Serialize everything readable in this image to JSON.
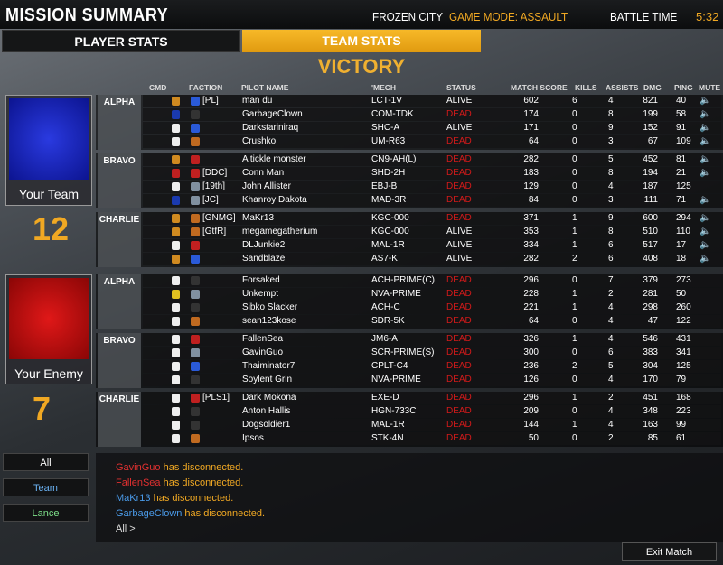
{
  "header": {
    "title": "MISSION SUMMARY",
    "map": "FROZEN CITY",
    "mode": "GAME MODE: ASSAULT",
    "battle_time_label": "BATTLE TIME",
    "battle_time": "5:32"
  },
  "tabs": [
    {
      "label": "PLAYER STATS",
      "active": false
    },
    {
      "label": "TEAM STATS",
      "active": true
    }
  ],
  "result": "VICTORY",
  "columns": [
    "CMD",
    "FACTION",
    "PILOT NAME",
    "'MECH",
    "STATUS",
    "MATCH SCORE",
    "KILLS",
    "ASSISTS",
    "DMG",
    "PING",
    "MUTE"
  ],
  "colors": {
    "accent": "#f0a823",
    "dead": "#d21a1a",
    "team": "#1a2ab8",
    "enemy": "#c01010"
  },
  "teams": [
    {
      "name": "Your Team",
      "score": "12",
      "lances": [
        {
          "name": "ALPHA",
          "rows": [
            [
              "commander",
              "#2a5ad8",
              "[PL]",
              "man du",
              "LCT-1V",
              "ALIVE",
              "602",
              "6",
              "4",
              "821",
              "40",
              true
            ],
            [
              "blue",
              "#333",
              "",
              "GarbageClown",
              "COM-TDK",
              "DEAD",
              "174",
              "0",
              "8",
              "199",
              "58",
              true
            ],
            [
              "pilot",
              "#2a5ad8",
              "",
              "Darkstariniraq",
              "SHC-A",
              "ALIVE",
              "171",
              "0",
              "9",
              "152",
              "91",
              true
            ],
            [
              "pilot",
              "#c06a20",
              "",
              "Crushko",
              "UM-R63",
              "DEAD",
              "64",
              "0",
              "3",
              "67",
              "109",
              true
            ]
          ]
        },
        {
          "name": "BRAVO",
          "rows": [
            [
              "commander",
              "#c02020",
              "",
              "A tickle monster",
              "CN9-AH(L)",
              "DEAD",
              "282",
              "0",
              "5",
              "452",
              "81",
              true
            ],
            [
              "red",
              "#c02020",
              "[DDC]",
              "Conn Man",
              "SHD-2H",
              "DEAD",
              "183",
              "0",
              "8",
              "194",
              "21",
              true
            ],
            [
              "pilot",
              "#8090a0",
              "[19th]",
              "John Allister",
              "EBJ-B",
              "DEAD",
              "129",
              "0",
              "4",
              "187",
              "125",
              false
            ],
            [
              "blue",
              "#8090a0",
              "[JC]",
              "Khanroy Dakota",
              "MAD-3R",
              "DEAD",
              "84",
              "0",
              "3",
              "111",
              "71",
              true
            ]
          ]
        },
        {
          "name": "CHARLIE",
          "rows": [
            [
              "commander",
              "#c06a20",
              "[GNMG]",
              "MaKr13",
              "KGC-000",
              "DEAD",
              "371",
              "1",
              "9",
              "600",
              "294",
              true
            ],
            [
              "commander",
              "#c06a20",
              "[GtfR]",
              "megamegatherium",
              "KGC-000",
              "ALIVE",
              "353",
              "1",
              "8",
              "510",
              "110",
              true
            ],
            [
              "pilot",
              "#c02020",
              "",
              "DLJunkie2",
              "MAL-1R",
              "ALIVE",
              "334",
              "1",
              "6",
              "517",
              "17",
              true
            ],
            [
              "commander",
              "#2a5ad8",
              "",
              "Sandblaze",
              "AS7-K",
              "ALIVE",
              "282",
              "2",
              "6",
              "408",
              "18",
              true
            ]
          ]
        }
      ]
    },
    {
      "name": "Your Enemy",
      "score": "7",
      "lances": [
        {
          "name": "ALPHA",
          "rows": [
            [
              "pilot",
              "#333",
              "",
              "Forsaked",
              "ACH-PRIME(C)",
              "DEAD",
              "296",
              "0",
              "7",
              "379",
              "273",
              false
            ],
            [
              "yellow",
              "#8090a0",
              "",
              "Unkempt",
              "NVA-PRIME",
              "DEAD",
              "228",
              "1",
              "2",
              "281",
              "50",
              false
            ],
            [
              "pilot",
              "#333",
              "",
              "Sibko Slacker",
              "ACH-C",
              "DEAD",
              "221",
              "1",
              "4",
              "298",
              "260",
              false
            ],
            [
              "pilot",
              "#c06a20",
              "",
              "sean123kose",
              "SDR-5K",
              "DEAD",
              "64",
              "0",
              "4",
              "47",
              "122",
              false
            ]
          ]
        },
        {
          "name": "BRAVO",
          "rows": [
            [
              "pilot",
              "#c02020",
              "",
              "FallenSea",
              "JM6-A",
              "DEAD",
              "326",
              "1",
              "4",
              "546",
              "431",
              false
            ],
            [
              "pilot",
              "#8090a0",
              "",
              "GavinGuo",
              "SCR-PRIME(S)",
              "DEAD",
              "300",
              "0",
              "6",
              "383",
              "341",
              false
            ],
            [
              "pilot",
              "#2a5ad8",
              "",
              "Thaiminator7",
              "CPLT-C4",
              "DEAD",
              "236",
              "2",
              "5",
              "304",
              "125",
              false
            ],
            [
              "pilot",
              "#333",
              "",
              "Soylent Grin",
              "NVA-PRIME",
              "DEAD",
              "126",
              "0",
              "4",
              "170",
              "79",
              false
            ]
          ]
        },
        {
          "name": "CHARLIE",
          "rows": [
            [
              "pilot",
              "#c02020",
              "[PLS1]",
              "Dark Mokona",
              "EXE-D",
              "DEAD",
              "296",
              "1",
              "2",
              "451",
              "168",
              false
            ],
            [
              "pilot",
              "#333",
              "",
              "Anton Hallis",
              "HGN-733C",
              "DEAD",
              "209",
              "0",
              "4",
              "348",
              "223",
              false
            ],
            [
              "pilot",
              "#333",
              "",
              "Dogsoldier1",
              "MAL-1R",
              "DEAD",
              "144",
              "1",
              "4",
              "163",
              "99",
              false
            ],
            [
              "pilot",
              "#c06a20",
              "",
              "Ipsos",
              "STK-4N",
              "DEAD",
              "50",
              "0",
              "2",
              "85",
              "61",
              false
            ]
          ]
        }
      ]
    }
  ],
  "chat": {
    "channels": [
      "All",
      "Team",
      "Lance"
    ],
    "messages": [
      {
        "name": "GavinGuo",
        "text": " has disconnected.",
        "color": "#e03030"
      },
      {
        "name": "FallenSea",
        "text": " has disconnected.",
        "color": "#e03030"
      },
      {
        "name": "MaKr13",
        "text": " has disconnected.",
        "color": "#4a9ae8"
      },
      {
        "name": "GarbageClown",
        "text": " has disconnected.",
        "color": "#4a9ae8"
      }
    ],
    "input_prompt": "All >"
  },
  "exit_label": "Exit Match"
}
